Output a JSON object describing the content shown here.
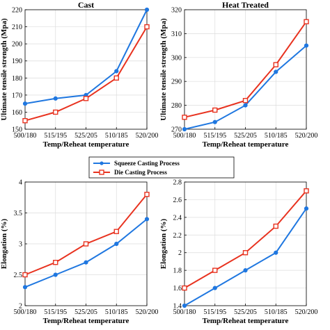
{
  "colors": {
    "squeeze": "#1f77e0",
    "die": "#e8321f",
    "grid": "#dcdcdc",
    "axis": "#000000"
  },
  "legend": {
    "position": "center",
    "entries": [
      {
        "label": "Squeeze Casting Process",
        "color": "#1f77e0",
        "marker": "circle"
      },
      {
        "label": "Die Casting Process",
        "color": "#e8321f",
        "marker": "square"
      }
    ]
  },
  "chart_data": [
    {
      "type": "line",
      "title": "Cast",
      "xlabel": "Temp/Reheat temperature",
      "ylabel": "Ultimate tensile strength (Mpa)",
      "categories": [
        "500/180",
        "515/195",
        "525/205",
        "510/185",
        "520/200"
      ],
      "ylim": [
        150,
        220
      ],
      "yticks": [
        "150",
        "160",
        "170",
        "180",
        "190",
        "200",
        "210",
        "220"
      ],
      "grid": true,
      "series": [
        {
          "name": "Squeeze Casting Process",
          "values": [
            165,
            168,
            170,
            184,
            220
          ]
        },
        {
          "name": "Die Casting Process",
          "values": [
            155,
            160,
            168,
            180,
            210
          ]
        }
      ]
    },
    {
      "type": "line",
      "title": "Heat Treated",
      "xlabel": "Temp/Reheat temperature",
      "ylabel": "Ultimate tensile strength (Mpa)",
      "categories": [
        "500/180",
        "515/195",
        "525/205",
        "510/185",
        "520/200"
      ],
      "ylim": [
        270,
        320
      ],
      "yticks": [
        "270",
        "280",
        "290",
        "300",
        "310",
        "320"
      ],
      "grid": true,
      "series": [
        {
          "name": "Squeeze Casting Process",
          "values": [
            270,
            273,
            280,
            294,
            305
          ]
        },
        {
          "name": "Die Casting Process",
          "values": [
            275,
            278,
            282,
            297,
            315
          ]
        }
      ]
    },
    {
      "type": "line",
      "title": "",
      "xlabel": "Temp/Reheat temperature",
      "ylabel": "Elongation (%)",
      "categories": [
        "500/180",
        "515/195",
        "525/205",
        "510/185",
        "520/200"
      ],
      "ylim": [
        2,
        4
      ],
      "yticks": [
        "2",
        "2.5",
        "3",
        "3.5",
        "4"
      ],
      "grid": true,
      "series": [
        {
          "name": "Squeeze Casting Process",
          "values": [
            2.3,
            2.5,
            2.7,
            3.0,
            3.4
          ]
        },
        {
          "name": "Die Casting Process",
          "values": [
            2.5,
            2.7,
            3.0,
            3.2,
            3.8
          ]
        }
      ]
    },
    {
      "type": "line",
      "title": "",
      "xlabel": "Temp/Reheat temperature",
      "ylabel": "Elongation (%)",
      "categories": [
        "500/180",
        "515/195",
        "525/205",
        "510/185",
        "520/200"
      ],
      "ylim": [
        1.4,
        2.8
      ],
      "yticks": [
        "1.4",
        "1.6",
        "1.8",
        "2",
        "2.2",
        "2.4",
        "2.6",
        "2.8"
      ],
      "grid": true,
      "series": [
        {
          "name": "Squeeze Casting Process",
          "values": [
            1.4,
            1.6,
            1.8,
            2.0,
            2.5
          ]
        },
        {
          "name": "Die Casting Process",
          "values": [
            1.6,
            1.8,
            2.0,
            2.3,
            2.7
          ]
        }
      ]
    }
  ]
}
